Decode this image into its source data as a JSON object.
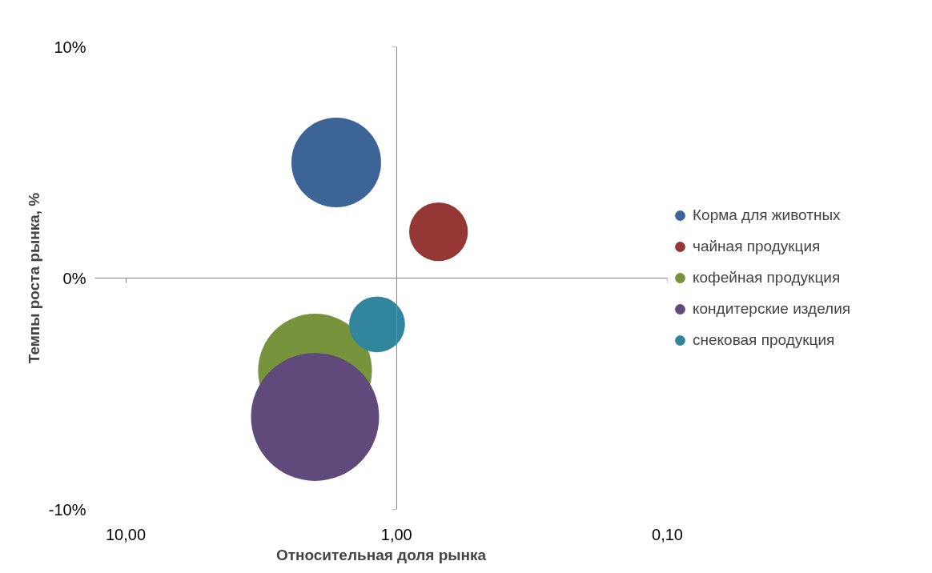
{
  "chart_data": {
    "type": "bubble",
    "xlabel": "Относительная доля рынка",
    "ylabel": "Темпы роста рынка, %",
    "log": "x",
    "legend": "right",
    "xlim": [
      13,
      0.1
    ],
    "ylim": [
      -10,
      10
    ],
    "xticks": [
      {
        "value": 10,
        "label": "10,00"
      },
      {
        "value": 1,
        "label": "1,00"
      },
      {
        "value": 0.1,
        "label": "0,10"
      }
    ],
    "yticks": [
      {
        "value": -10,
        "label": "-10%"
      },
      {
        "value": 0,
        "label": "0%"
      },
      {
        "value": 10,
        "label": "10%"
      }
    ],
    "series": [
      {
        "name": "Корма для животных",
        "color": "#3c6496",
        "x": [
          1.67
        ],
        "values": [
          5.0
        ],
        "sizes": [
          0.49
        ]
      },
      {
        "name": "чайная продукция",
        "color": "#953735",
        "x": [
          0.7
        ],
        "values": [
          2.0
        ],
        "sizes": [
          0.21
        ]
      },
      {
        "name": "кофейная продукция",
        "color": "#77933c",
        "x": [
          2.0
        ],
        "values": [
          -4.0
        ],
        "sizes": [
          0.79
        ]
      },
      {
        "name": "кондитерские изделия",
        "color": "#604a7b",
        "x": [
          2.0
        ],
        "values": [
          -6.0
        ],
        "sizes": [
          1.0
        ]
      },
      {
        "name": "снековая продукция",
        "color": "#31859c",
        "x": [
          1.18
        ],
        "values": [
          -2.0
        ],
        "sizes": [
          0.19
        ]
      }
    ]
  }
}
